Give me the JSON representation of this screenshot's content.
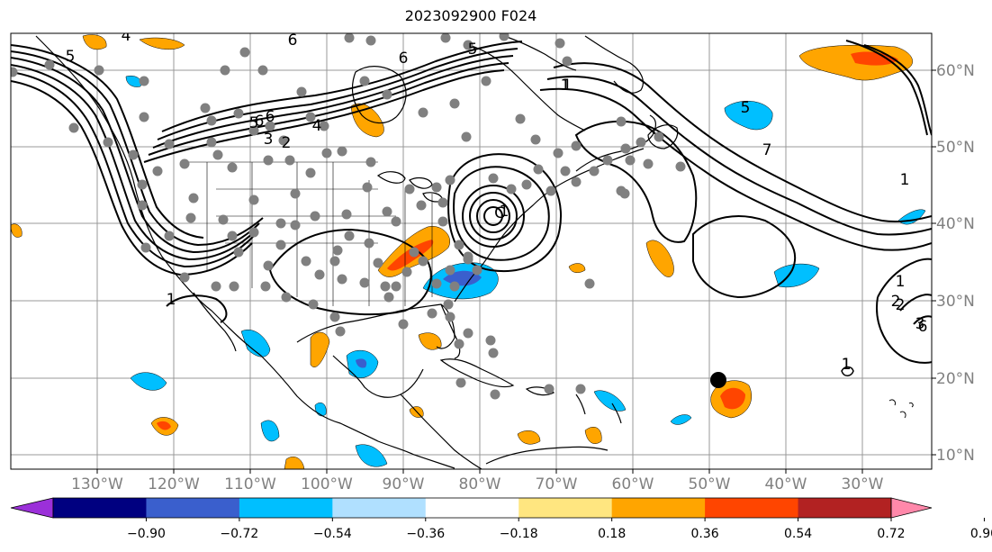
{
  "title": "2023092900 F024",
  "map": {
    "lon_labels": [
      "130°W",
      "120°W",
      "110°W",
      "100°W",
      "90°W",
      "80°W",
      "70°W",
      "60°W",
      "50°W",
      "40°W",
      "30°W"
    ],
    "lat_labels": [
      "60°N",
      "50°N",
      "40°N",
      "30°N",
      "20°N",
      "10°N"
    ]
  },
  "colorbar": {
    "ticks": [
      "−0.90",
      "−0.72",
      "−0.54",
      "−0.36",
      "−0.18",
      "0.18",
      "0.36",
      "0.54",
      "0.72",
      "0.90"
    ],
    "colors": [
      "#9b30d9",
      "#000080",
      "#3a5fcd",
      "#00bfff",
      "#b0e0ff",
      "#ffffff",
      "#ffe680",
      "#ffa500",
      "#ff4500",
      "#b22222",
      "#ff88aa"
    ]
  },
  "contour_labels": [
    "5",
    "4",
    "6",
    "6",
    "5",
    "1",
    "6",
    "5",
    "6",
    "4",
    "3",
    "2",
    "1",
    "C",
    "1",
    "2",
    "6",
    "5",
    "7",
    "1",
    "2",
    "3",
    "1",
    "1",
    "1",
    "1"
  ],
  "colors": {
    "positive_light": "#ffa500",
    "positive_mid": "#ff4500",
    "negative_light": "#00bfff",
    "negative_mid": "#3a5fcd",
    "station_dot": "#808080",
    "grid": "#999999"
  }
}
